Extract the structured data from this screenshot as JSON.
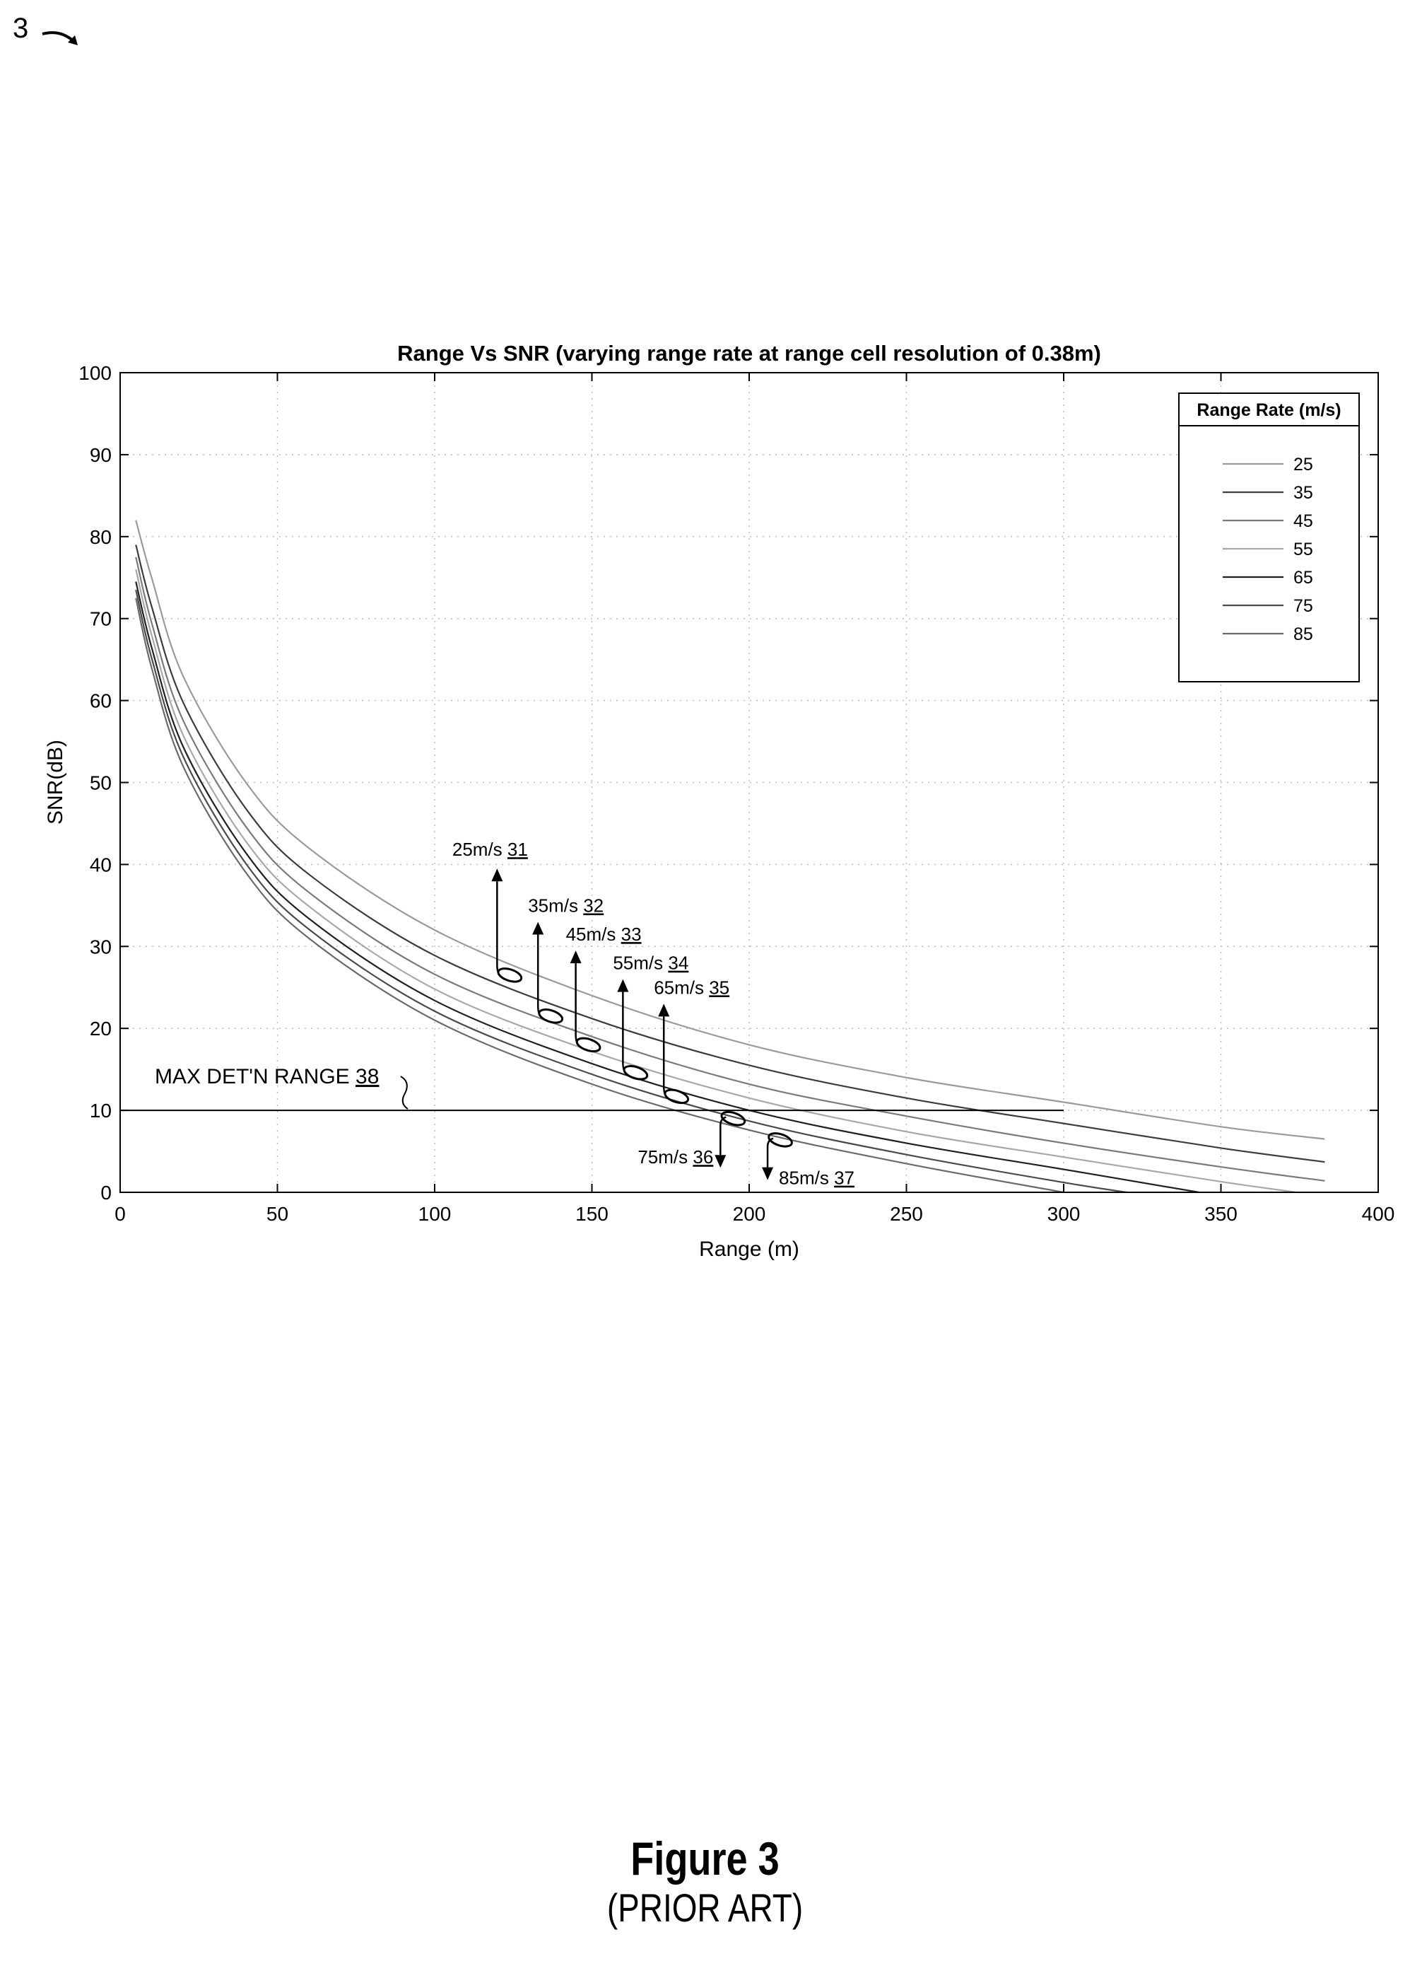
{
  "figure": {
    "ref_numeral": "3",
    "caption": "Figure 3",
    "subcaption": "(PRIOR ART)"
  },
  "chart_data": {
    "type": "line",
    "title": "Range Vs SNR (varying range rate at range cell resolution of 0.38m)",
    "xlabel": "Range (m)",
    "ylabel": "SNR(dB)",
    "xlim": [
      0,
      400
    ],
    "ylim": [
      0,
      100
    ],
    "xticks": [
      0,
      50,
      100,
      150,
      200,
      250,
      300,
      350,
      400
    ],
    "yticks": [
      0,
      10,
      20,
      30,
      40,
      50,
      60,
      70,
      80,
      90,
      100
    ],
    "grid": true,
    "legend_title": "Range Rate (m/s)",
    "legend_position": "top-right",
    "series": [
      {
        "name": "25",
        "color": "#9a9a9a",
        "x": [
          5,
          10,
          20,
          40,
          60,
          100,
          150,
          200,
          250,
          300,
          350,
          383
        ],
        "y": [
          82,
          75,
          63,
          50,
          42,
          32,
          24,
          18,
          14,
          11,
          8,
          6.5
        ]
      },
      {
        "name": "35",
        "color": "#3c3c3c",
        "x": [
          5,
          10,
          20,
          40,
          60,
          100,
          150,
          200,
          250,
          300,
          350,
          383
        ],
        "y": [
          79,
          71.5,
          59.8,
          46.8,
          38.8,
          28.9,
          21.2,
          15.5,
          11.5,
          8.4,
          5.4,
          3.7
        ]
      },
      {
        "name": "45",
        "color": "#7a7a7a",
        "x": [
          5,
          10,
          20,
          40,
          60,
          100,
          150,
          200,
          250,
          300,
          350,
          383
        ],
        "y": [
          77.5,
          69.5,
          57.6,
          44.6,
          36.6,
          26.6,
          19,
          13.2,
          9.3,
          6,
          3.1,
          1.4
        ]
      },
      {
        "name": "55",
        "color": "#a8a8a8",
        "x": [
          5,
          10,
          20,
          40,
          60,
          100,
          150,
          200,
          250,
          300,
          350,
          374
        ],
        "y": [
          76,
          68,
          55.8,
          42.8,
          34.9,
          24.8,
          17.2,
          11.5,
          7.4,
          4.3,
          1.3,
          0
        ]
      },
      {
        "name": "65",
        "color": "#202020",
        "x": [
          5,
          10,
          20,
          40,
          60,
          100,
          150,
          200,
          250,
          300,
          343
        ],
        "y": [
          74.5,
          66.5,
          54.4,
          41.4,
          33.4,
          23.4,
          15.7,
          10,
          6,
          2.8,
          0
        ]
      },
      {
        "name": "75",
        "color": "#4a4a4a",
        "x": [
          5,
          10,
          20,
          40,
          60,
          100,
          150,
          200,
          250,
          300,
          320
        ],
        "y": [
          73.5,
          65.2,
          53.2,
          40.1,
          32.1,
          22.1,
          14.4,
          8.7,
          4.6,
          1.2,
          0
        ]
      },
      {
        "name": "85",
        "color": "#6a6a6a",
        "x": [
          5,
          10,
          20,
          40,
          60,
          100,
          150,
          200,
          250,
          300
        ],
        "y": [
          72.5,
          64,
          52,
          39,
          31,
          21,
          13.2,
          7.6,
          3.5,
          0
        ]
      }
    ],
    "threshold_line": {
      "y": 10,
      "x": [
        0,
        300
      ]
    },
    "annotations": [
      {
        "text": "25m/s",
        "ref": "31",
        "x": 123,
        "y": 26.5,
        "direction": "up",
        "arrow_to": 39.5
      },
      {
        "text": "35m/s",
        "ref": "32",
        "x": 136,
        "y": 21.5,
        "direction": "up",
        "arrow_to": 33
      },
      {
        "text": "45m/s",
        "ref": "33",
        "x": 148,
        "y": 18,
        "direction": "up",
        "arrow_to": 29.5
      },
      {
        "text": "55m/s",
        "ref": "34",
        "x": 163,
        "y": 14.6,
        "direction": "up",
        "arrow_to": 26
      },
      {
        "text": "65m/s",
        "ref": "35",
        "x": 176,
        "y": 11.7,
        "direction": "up",
        "arrow_to": 23
      },
      {
        "text": "75m/s",
        "ref": "36",
        "x": 194,
        "y": 9,
        "direction": "down",
        "arrow_to": 3
      },
      {
        "text": "85m/s",
        "ref": "37",
        "x": 209,
        "y": 6.4,
        "direction": "down",
        "arrow_to": 1.5
      },
      {
        "text": "MAX DET'N RANGE",
        "ref": "38",
        "x": 91,
        "y": 10,
        "direction": "bracket"
      }
    ]
  }
}
